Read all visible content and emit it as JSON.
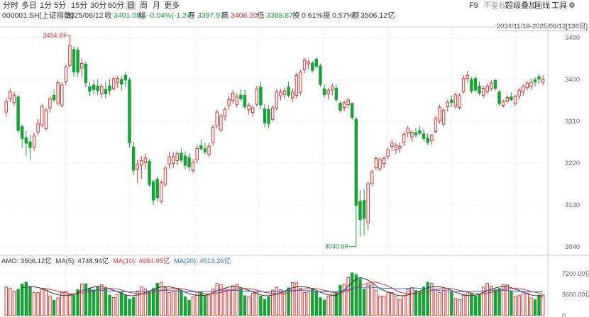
{
  "toolbar": {
    "periods": [
      "分时",
      "多日",
      "1分",
      "5分",
      "15分",
      "30分",
      "60分",
      "日",
      "周",
      "月",
      "更多"
    ],
    "active_period": "日",
    "f9": "F9",
    "no_adjust": "不复权",
    "overlay": "超级叠加",
    "draw": "画线",
    "tools": "工具",
    "settings_icon": "gear-icon"
  },
  "info": {
    "code": "000001.SH[上证指数]",
    "date": "2025/06/12",
    "close_label": "收",
    "close_value": "3401.08",
    "change_label": "幅",
    "change_value": "-0.04%(-1.24)",
    "open_label": "开",
    "open_value": "3397.97",
    "high_label": "高",
    "high_value": "3408.20",
    "low_label": "低",
    "low_value": "3388.87",
    "turnover_label": "换",
    "turnover_value": "0.61%",
    "amplitude_label": "振",
    "amplitude_value": "0.57%",
    "amount_label": "额",
    "amount_value": "3506.12亿"
  },
  "range_label": "2024/11/19-2025/06/12[136日]",
  "price_axis": {
    "ticks": [
      3490,
      3400,
      3310,
      3220,
      3130,
      3040
    ],
    "ylim": [
      3025,
      3510
    ]
  },
  "annotations": {
    "max": "3494.87",
    "min": "3040.69"
  },
  "volume_legend": {
    "amo": "AMO: 3506.12亿",
    "ma5": "MA(5): 4748.94亿",
    "ma10": "MA(10): 4684.95亿",
    "ma20": "MA(20): 4513.26亿"
  },
  "volume_axis": {
    "ticks": [
      "7200.00亿",
      "3600.00亿",
      "0"
    ]
  },
  "colors": {
    "up": "#e0302d",
    "down": "#18a338",
    "ma5": "#333333",
    "ma10": "#e0302d",
    "ma20": "#2a6fd6",
    "grid": "#e6e6e6"
  },
  "chart_data": {
    "type": "candlestick",
    "count": 136,
    "start": "2024/11/19",
    "end": "2025/06/12",
    "ohlc_seed": [
      [
        3330,
        3360,
        3320,
        3352
      ],
      [
        3352,
        3375,
        3345,
        3368
      ],
      [
        3368,
        3372,
        3290,
        3296
      ],
      [
        3296,
        3300,
        3250,
        3270
      ],
      [
        3270,
        3285,
        3230,
        3258
      ],
      [
        3258,
        3290,
        3250,
        3282
      ],
      [
        3282,
        3310,
        3275,
        3300
      ],
      [
        3300,
        3345,
        3295,
        3340
      ],
      [
        3340,
        3365,
        3330,
        3360
      ],
      [
        3360,
        3372,
        3345,
        3350
      ],
      [
        3350,
        3400,
        3345,
        3394
      ],
      [
        3394,
        3430,
        3385,
        3425
      ],
      [
        3425,
        3494,
        3420,
        3468
      ],
      [
        3468,
        3475,
        3410,
        3420
      ],
      [
        3420,
        3440,
        3400,
        3430
      ],
      [
        3430,
        3436,
        3380,
        3390
      ],
      [
        3390,
        3400,
        3370,
        3380
      ],
      [
        3380,
        3395,
        3360,
        3370
      ],
      [
        3370,
        3390,
        3360,
        3385
      ],
      [
        3385,
        3400,
        3365,
        3375
      ],
      [
        3375,
        3400,
        3370,
        3396
      ],
      [
        3396,
        3410,
        3385,
        3405
      ],
      [
        3405,
        3412,
        3380,
        3395
      ],
      [
        3395,
        3400,
        3250,
        3260
      ],
      [
        3260,
        3270,
        3200,
        3210
      ],
      [
        3210,
        3230,
        3180,
        3220
      ],
      [
        3220,
        3240,
        3205,
        3230
      ],
      [
        3230,
        3235,
        3175,
        3180
      ],
      [
        3180,
        3185,
        3130,
        3140
      ],
      [
        3140,
        3185,
        3135,
        3180
      ],
      [
        3180,
        3220,
        3175,
        3215
      ],
      [
        3215,
        3240,
        3205,
        3230
      ],
      [
        3230,
        3250,
        3220,
        3245
      ],
      [
        3245,
        3255,
        3225,
        3230
      ],
      [
        3230,
        3240,
        3200,
        3210
      ],
      [
        3210,
        3235,
        3205,
        3228
      ],
      [
        3228,
        3260,
        3220,
        3252
      ],
      [
        3252,
        3265,
        3240,
        3245
      ],
      [
        3245,
        3270,
        3240,
        3262
      ],
      [
        3262,
        3300,
        3255,
        3295
      ],
      [
        3295,
        3330,
        3290,
        3325
      ],
      [
        3325,
        3345,
        3315,
        3340
      ],
      [
        3340,
        3360,
        3330,
        3352
      ],
      [
        3352,
        3375,
        3345,
        3368
      ],
      [
        3368,
        3380,
        3355,
        3360
      ],
      [
        3360,
        3372,
        3330,
        3335
      ],
      [
        3335,
        3350,
        3325,
        3345
      ],
      [
        3345,
        3385,
        3340,
        3378
      ],
      [
        3378,
        3390,
        3330,
        3340
      ],
      [
        3340,
        3350,
        3300,
        3310
      ],
      [
        3310,
        3340,
        3305,
        3335
      ],
      [
        3335,
        3375,
        3330,
        3370
      ],
      [
        3370,
        3385,
        3360,
        3378
      ],
      [
        3378,
        3390,
        3355,
        3360
      ],
      [
        3360,
        3380,
        3350,
        3372
      ],
      [
        3372,
        3420,
        3365,
        3415
      ],
      [
        3415,
        3440,
        3408,
        3436
      ],
      [
        3436,
        3445,
        3425,
        3440
      ],
      [
        3440,
        3445,
        3420,
        3425
      ],
      [
        3425,
        3430,
        3380,
        3385
      ],
      [
        3385,
        3395,
        3365,
        3372
      ],
      [
        3372,
        3385,
        3360,
        3380
      ],
      [
        3380,
        3388,
        3350,
        3355
      ],
      [
        3355,
        3360,
        3335,
        3340
      ],
      [
        3340,
        3355,
        3332,
        3350
      ],
      [
        3350,
        3352,
        3315,
        3320
      ],
      [
        3320,
        3325,
        3050,
        3135
      ],
      [
        3135,
        3160,
        3060,
        3096
      ],
      [
        3096,
        3185,
        3080,
        3180
      ],
      [
        3180,
        3210,
        3175,
        3205
      ],
      [
        3205,
        3230,
        3200,
        3225
      ],
      [
        3225,
        3240,
        3215,
        3236
      ],
      [
        3236,
        3255,
        3230,
        3250
      ],
      [
        3250,
        3265,
        3240,
        3258
      ],
      [
        3258,
        3270,
        3248,
        3262
      ],
      [
        3262,
        3285,
        3255,
        3280
      ],
      [
        3280,
        3295,
        3270,
        3290
      ],
      [
        3290,
        3300,
        3280,
        3285
      ],
      [
        3285,
        3295,
        3275,
        3280
      ],
      [
        3280,
        3290,
        3265,
        3270
      ],
      [
        3270,
        3285,
        3262,
        3282
      ],
      [
        3282,
        3315,
        3278,
        3310
      ],
      [
        3310,
        3345,
        3305,
        3340
      ],
      [
        3340,
        3355,
        3330,
        3350
      ],
      [
        3350,
        3360,
        3335,
        3345
      ],
      [
        3345,
        3375,
        3340,
        3370
      ],
      [
        3370,
        3405,
        3365,
        3398
      ],
      [
        3398,
        3415,
        3390,
        3405
      ],
      [
        3405,
        3410,
        3375,
        3380
      ],
      [
        3380,
        3390,
        3360,
        3365
      ],
      [
        3365,
        3385,
        3360,
        3380
      ],
      [
        3380,
        3398,
        3375,
        3392
      ],
      [
        3392,
        3396,
        3370,
        3375
      ],
      [
        3375,
        3380,
        3345,
        3350
      ],
      [
        3350,
        3362,
        3345,
        3358
      ],
      [
        3358,
        3368,
        3348,
        3352
      ],
      [
        3352,
        3372,
        3348,
        3368
      ],
      [
        3368,
        3385,
        3360,
        3380
      ],
      [
        3380,
        3395,
        3375,
        3390
      ],
      [
        3390,
        3408,
        3385,
        3400
      ],
      [
        3400,
        3406,
        3385,
        3395
      ],
      [
        3395,
        3410,
        3388,
        3401
      ]
    ],
    "volume_scale_max": 7200,
    "ma_volume": {
      "ma5": 4748.94,
      "ma10": 4684.95,
      "ma20": 4513.26
    },
    "last_amount": 3506.12
  }
}
